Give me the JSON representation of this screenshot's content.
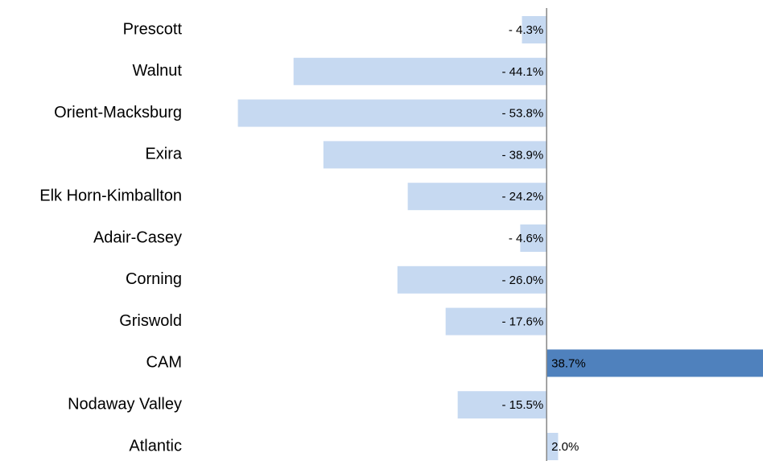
{
  "chart_data": {
    "type": "bar",
    "orientation": "horizontal",
    "categories": [
      "Prescott",
      "Walnut",
      "Orient-Macksburg",
      "Exira",
      "Elk Horn-Kimballton",
      "Adair-Casey",
      "Corning",
      "Griswold",
      "CAM",
      "Nodaway Valley",
      "Atlantic"
    ],
    "values": [
      -4.3,
      -44.1,
      -53.8,
      -38.9,
      -24.2,
      -4.6,
      -26.0,
      -17.6,
      38.7,
      -15.5,
      2.0
    ],
    "value_labels": [
      "- 4.3%",
      "- 44.1%",
      "- 53.8%",
      "- 38.9%",
      "- 24.2%",
      "- 4.6%",
      "- 26.0%",
      "- 17.6%",
      "38.7%",
      "- 15.5%",
      "2.0%"
    ],
    "colors": [
      "#c6d9f1",
      "#c6d9f1",
      "#c6d9f1",
      "#c6d9f1",
      "#c6d9f1",
      "#c6d9f1",
      "#c6d9f1",
      "#c6d9f1",
      "#4f81bd",
      "#c6d9f1",
      "#c6d9f1"
    ],
    "xlim": [
      -55,
      37.7
    ]
  }
}
